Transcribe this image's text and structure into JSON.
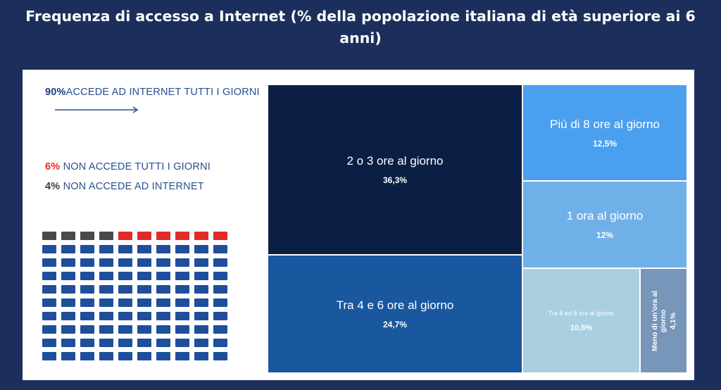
{
  "title": {
    "line1": "Frequenza di accesso a Internet (% della popolazione italiana di età superiore ai 6",
    "line2": "anni)"
  },
  "summary": {
    "daily": {
      "pct": "90%",
      "label": "ACCEDE AD INTERNET TUTTI I GIORNI"
    },
    "not_daily": {
      "pct": "6%",
      "label": " NON ACCEDE TUTTI I GIORNI"
    },
    "no_access": {
      "pct": "4%",
      "label": " NON ACCEDE AD INTERNET"
    }
  },
  "colors": {
    "page_background": "#1c2f5c",
    "daily": "#1f4f9c",
    "not_daily": "#e32b2b",
    "no_access": "#4a4a4a"
  },
  "waffle": {
    "total": 100,
    "no_access": 4,
    "not_daily": 6,
    "daily": 90
  },
  "chart_data": {
    "type": "treemap",
    "title": "Frequenza di accesso a Internet (% della popolazione italiana di età superiore ai 6 anni)",
    "units": "%",
    "items": [
      {
        "label": "2 o 3 ore al giorno",
        "value": 36.3,
        "value_text": "36,3%",
        "color": "#0b1f45",
        "text_color": "#ffffff"
      },
      {
        "label": "Tra 4 e 6 ore al giorno",
        "value": 24.7,
        "value_text": "24,7%",
        "color": "#19579f",
        "text_color": "#ffffff"
      },
      {
        "label": "Più di 8 ore al giorno",
        "value": 12.5,
        "value_text": "12,5%",
        "color": "#4aa0ef",
        "text_color": "#ffffff"
      },
      {
        "label": "1 ora al giorno",
        "value": 12,
        "value_text": "12%",
        "color": "#70b0e8",
        "text_color": "#ffffff"
      },
      {
        "label": "Tra 6 ed 8 ore al giorno",
        "value": 10.5,
        "value_text": "10,5%",
        "color": "#a9cfe0",
        "text_color": "#ffffff"
      },
      {
        "label": "Meno di un'ora al giorno",
        "value": 4.1,
        "value_text": "4,1%",
        "color": "#7895ba",
        "text_color": "#ffffff"
      }
    ]
  }
}
